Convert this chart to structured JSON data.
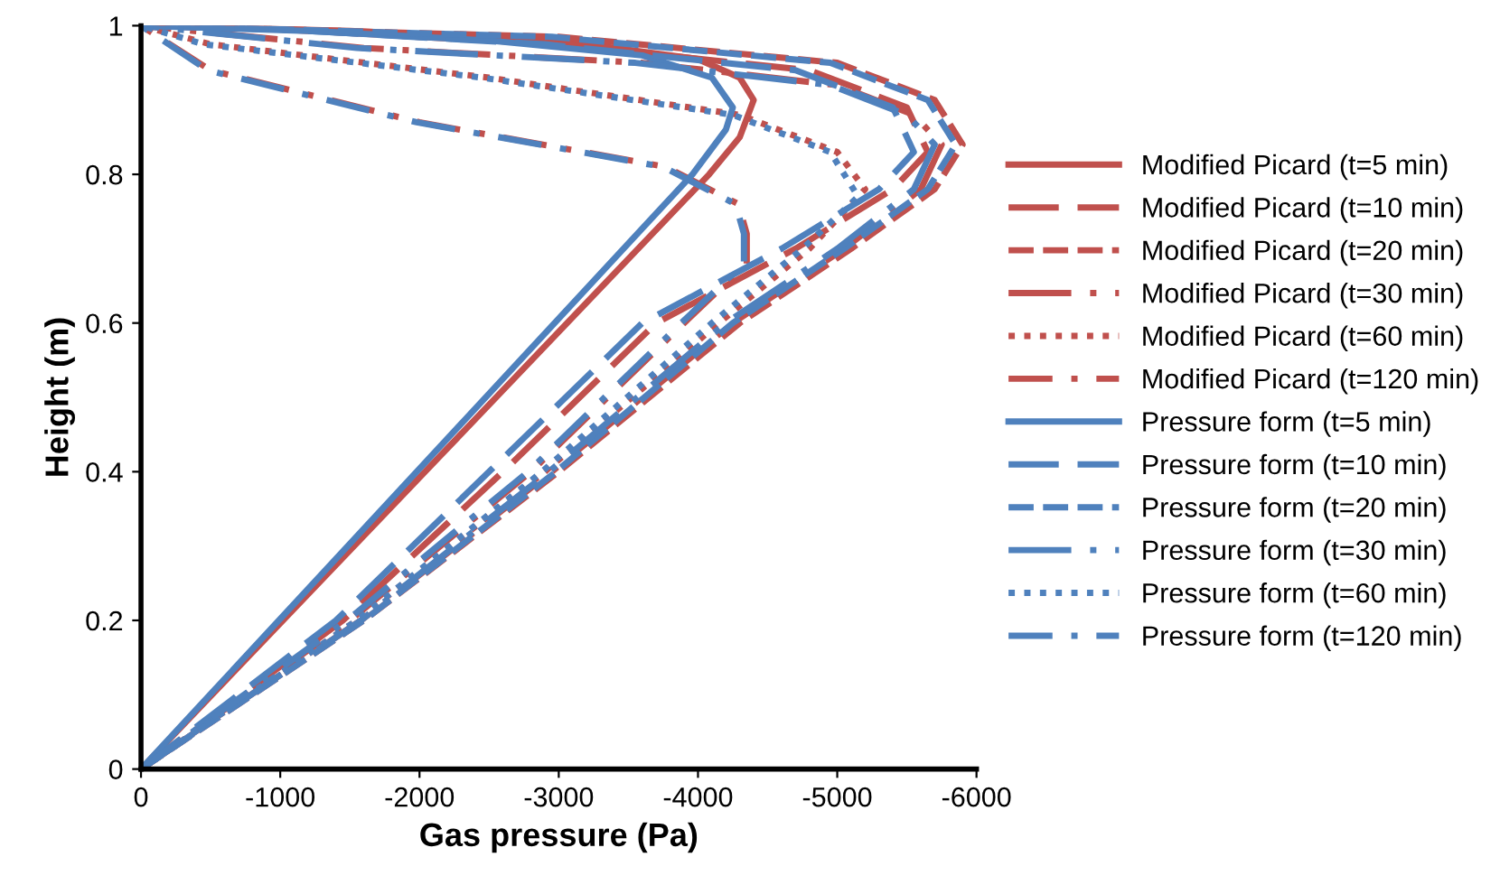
{
  "chart_data": {
    "type": "line",
    "xlabel": "Gas pressure (Pa)",
    "ylabel": "Height (m)",
    "xlim": [
      0,
      -6000
    ],
    "xticks": [
      0,
      -1000,
      -2000,
      -3000,
      -4000,
      -5000,
      -6000
    ],
    "ylim": [
      0,
      1
    ],
    "yticks": [
      0,
      0.2,
      0.4,
      0.6,
      0.8,
      1
    ],
    "grid": false,
    "legend": "right",
    "marker": "none",
    "series": [
      {
        "name": "Modified Picard (t=5 min)",
        "color": "#c0504d",
        "line_style": "solid",
        "x": [
          0,
          -4080,
          -4300,
          -4400,
          -4300,
          -4000,
          -3000,
          -1500,
          0
        ],
        "values": [
          0,
          0.8,
          0.85,
          0.9,
          0.93,
          0.955,
          0.98,
          0.993,
          1
        ]
      },
      {
        "name": "Modified Picard (t=10 min)",
        "color": "#c0504d",
        "line_style": "longdash",
        "x": [
          0,
          -1450,
          -2600,
          -3700,
          -4700,
          -5400,
          -5650,
          -5500,
          -4800,
          -3000,
          -1000,
          0
        ],
        "values": [
          0,
          0.2,
          0.4,
          0.6,
          0.7,
          0.78,
          0.83,
          0.89,
          0.94,
          0.975,
          0.995,
          1
        ]
      },
      {
        "name": "Modified Picard (t=20 min)",
        "color": "#c0504d",
        "line_style": "dashed",
        "x": [
          0,
          -1600,
          -3000,
          -4300,
          -5100,
          -5700,
          -5900,
          -5700,
          -5000,
          -3000,
          0
        ],
        "values": [
          0,
          0.2,
          0.4,
          0.6,
          0.7,
          0.78,
          0.84,
          0.9,
          0.95,
          0.985,
          1
        ]
      },
      {
        "name": "Modified Picard (t=30 min)",
        "color": "#c0504d",
        "line_style": "longdashdot",
        "x": [
          0,
          -1580,
          -2950,
          -4250,
          -5050,
          -5600,
          -5750,
          -5550,
          -5000,
          -3600,
          -1600,
          0
        ],
        "values": [
          0,
          0.2,
          0.4,
          0.6,
          0.7,
          0.78,
          0.84,
          0.88,
          0.92,
          0.95,
          0.97,
          1
        ]
      },
      {
        "name": "Modified Picard (t=60 min)",
        "color": "#c0504d",
        "line_style": "dotted",
        "x": [
          0,
          -1550,
          -2900,
          -4150,
          -4800,
          -5200,
          -5000,
          -4300,
          -2500,
          -500,
          0
        ],
        "values": [
          0,
          0.2,
          0.4,
          0.6,
          0.7,
          0.78,
          0.83,
          0.88,
          0.93,
          0.975,
          1
        ]
      },
      {
        "name": "Modified Picard (t=120 min)",
        "color": "#c0504d",
        "line_style": "dashdot",
        "x": [
          0,
          -1500,
          -2800,
          -3900,
          -4350,
          -4350,
          -4290,
          -3770,
          -2000,
          -500,
          0
        ],
        "values": [
          0,
          0.2,
          0.4,
          0.6,
          0.68,
          0.72,
          0.76,
          0.81,
          0.87,
          0.94,
          1
        ]
      },
      {
        "name": "Pressure form (t=5 min)",
        "color": "#4f81bd",
        "line_style": "solid",
        "x": [
          0,
          -3960,
          -4200,
          -4250,
          -4100,
          -3600,
          -2500,
          -1200,
          0
        ],
        "values": [
          0,
          0.8,
          0.86,
          0.89,
          0.93,
          0.96,
          0.98,
          0.993,
          1
        ]
      },
      {
        "name": "Pressure form (t=10 min)",
        "color": "#4f81bd",
        "line_style": "longdash",
        "x": [
          0,
          -1400,
          -2500,
          -3600,
          -4600,
          -5300,
          -5550,
          -5400,
          -4700,
          -2900,
          -1000,
          0
        ],
        "values": [
          0,
          0.2,
          0.4,
          0.6,
          0.7,
          0.78,
          0.83,
          0.89,
          0.94,
          0.975,
          0.995,
          1
        ]
      },
      {
        "name": "Pressure form (t=20 min)",
        "color": "#4f81bd",
        "line_style": "dashed",
        "x": [
          0,
          -1600,
          -2980,
          -4250,
          -5050,
          -5650,
          -5850,
          -5650,
          -4950,
          -2950,
          0
        ],
        "values": [
          0,
          0.2,
          0.4,
          0.6,
          0.7,
          0.78,
          0.84,
          0.9,
          0.95,
          0.985,
          1
        ]
      },
      {
        "name": "Pressure form (t=30 min)",
        "color": "#4f81bd",
        "line_style": "longdashdot",
        "x": [
          0,
          -1580,
          -2930,
          -4200,
          -5000,
          -5550,
          -5700,
          -5500,
          -4950,
          -3550,
          -1550,
          0
        ],
        "values": [
          0,
          0.2,
          0.4,
          0.6,
          0.7,
          0.78,
          0.84,
          0.88,
          0.92,
          0.95,
          0.97,
          1
        ]
      },
      {
        "name": "Pressure form (t=60 min)",
        "color": "#4f81bd",
        "line_style": "dotted",
        "x": [
          0,
          -1550,
          -2880,
          -4100,
          -4750,
          -5150,
          -4950,
          -4250,
          -2450,
          -450,
          0
        ],
        "values": [
          0,
          0.2,
          0.4,
          0.6,
          0.7,
          0.77,
          0.83,
          0.88,
          0.93,
          0.975,
          1
        ]
      },
      {
        "name": "Pressure form (t=120 min)",
        "color": "#4f81bd",
        "line_style": "dashdot",
        "x": [
          0,
          -1480,
          -2780,
          -3880,
          -4330,
          -4330,
          -4270,
          -3750,
          -1980,
          -480,
          0
        ],
        "values": [
          0,
          0.2,
          0.4,
          0.6,
          0.68,
          0.72,
          0.76,
          0.81,
          0.87,
          0.94,
          1
        ]
      }
    ]
  }
}
